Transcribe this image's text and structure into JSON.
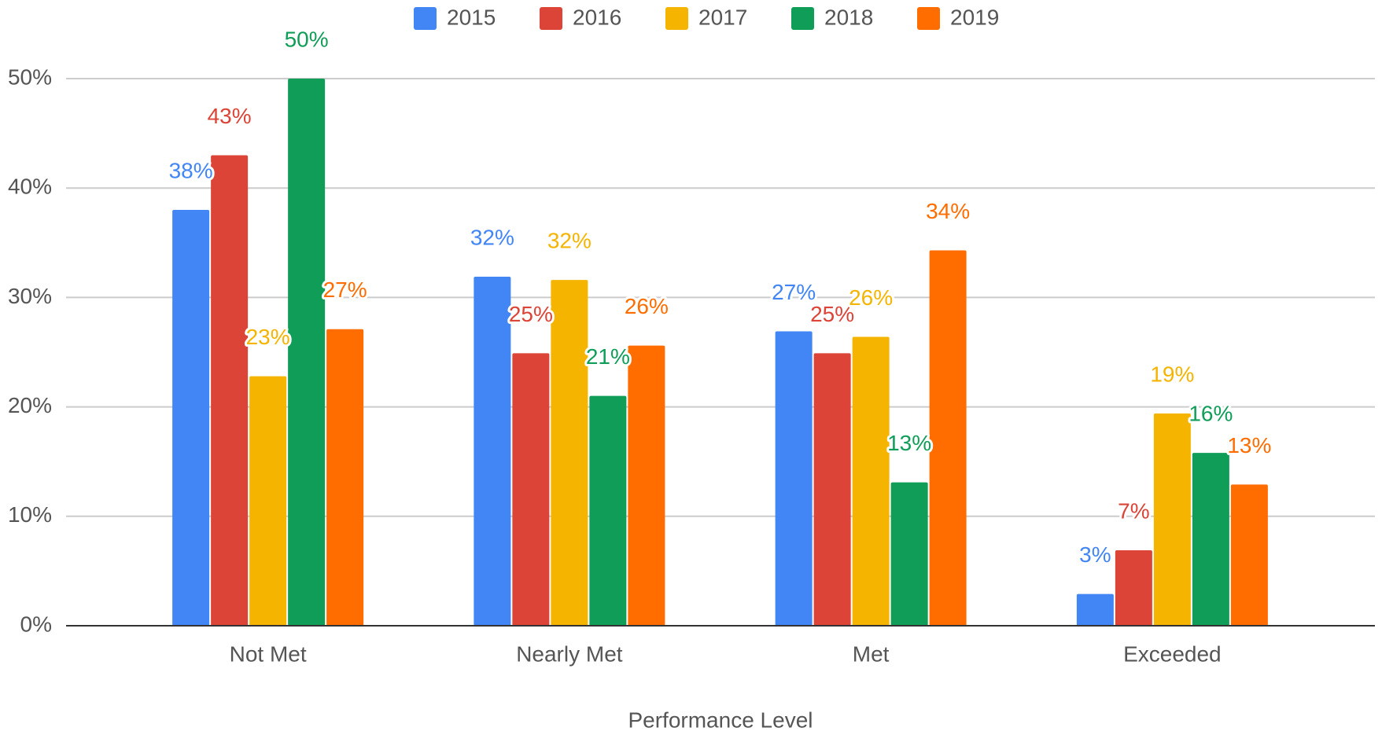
{
  "chart_data": {
    "type": "bar",
    "x_label": "Performance Level",
    "categories": [
      "Not Met",
      "Nearly Met",
      "Met",
      "Exceeded"
    ],
    "series": [
      {
        "name": "2015",
        "color": "#4285f4",
        "values": [
          38,
          31.9,
          26.9,
          2.9
        ],
        "value_labels": [
          "38%",
          "32%",
          "27%",
          "3%"
        ]
      },
      {
        "name": "2016",
        "color": "#db4437",
        "values": [
          43,
          24.9,
          24.9,
          6.9
        ],
        "value_labels": [
          "43%",
          "25%",
          "25%",
          "7%"
        ]
      },
      {
        "name": "2017",
        "color": "#f4b400",
        "values": [
          22.8,
          31.6,
          26.4,
          19.4
        ],
        "value_labels": [
          "23%",
          "32%",
          "26%",
          "19%"
        ]
      },
      {
        "name": "2018",
        "color": "#0f9d58",
        "values": [
          50,
          21,
          13.1,
          15.8
        ],
        "value_labels": [
          "50%",
          "21%",
          "13%",
          "16%"
        ]
      },
      {
        "name": "2019",
        "color": "#ff6d00",
        "values": [
          27.1,
          25.6,
          34.3,
          12.9
        ],
        "value_labels": [
          "27%",
          "26%",
          "34%",
          "13%"
        ]
      }
    ],
    "ylim": [
      0,
      50
    ],
    "yticks": [
      {
        "value": 0,
        "label": "0%"
      },
      {
        "value": 10,
        "label": "10%"
      },
      {
        "value": 20,
        "label": "20%"
      },
      {
        "value": 30,
        "label": "30%"
      },
      {
        "value": 40,
        "label": "40%"
      },
      {
        "value": 50,
        "label": "50%"
      }
    ],
    "grid": true,
    "legend": "top"
  }
}
